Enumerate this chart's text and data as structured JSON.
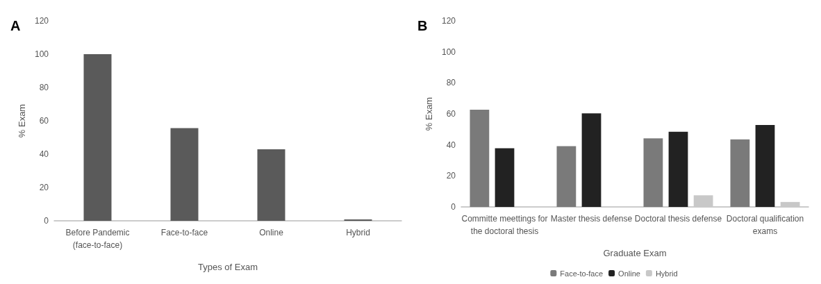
{
  "chart_data": [
    {
      "type": "bar",
      "title": "A",
      "xlabel": "Types of Exam",
      "ylabel": "% Exam",
      "categories": [
        "Before Pandemic\n(face-to-face)",
        "Face-to-face",
        "Online",
        "Hybrid"
      ],
      "values": [
        100,
        55.6,
        42.9,
        0.8
      ],
      "color": "#5a5a5a",
      "ylim": [
        0,
        120
      ],
      "yticks": [
        0,
        20,
        40,
        60,
        80,
        100,
        120
      ],
      "grid": false,
      "legend": false
    },
    {
      "type": "bar",
      "title": "B",
      "xlabel": "Graduate Exam",
      "ylabel": "% Exam",
      "categories": [
        "Committe meettings for\nthe doctoral thesis",
        "Master thesis defense",
        "Doctoral thesis defense",
        "Doctoral qualification\nexams"
      ],
      "series": [
        {
          "name": "Face-to-face",
          "color": "#7a7a7a",
          "values": [
            62.7,
            39.2,
            44.2,
            43.5
          ]
        },
        {
          "name": "Online",
          "color": "#222222",
          "values": [
            37.8,
            60.3,
            48.5,
            52.8
          ]
        },
        {
          "name": "Hybrid",
          "color": "#c8c8c8",
          "values": [
            0,
            0,
            7.5,
            3.2
          ]
        }
      ],
      "ylim": [
        0,
        120
      ],
      "yticks": [
        0,
        20,
        40,
        60,
        80,
        100,
        120
      ],
      "grid": false,
      "legend": "bottom"
    }
  ]
}
